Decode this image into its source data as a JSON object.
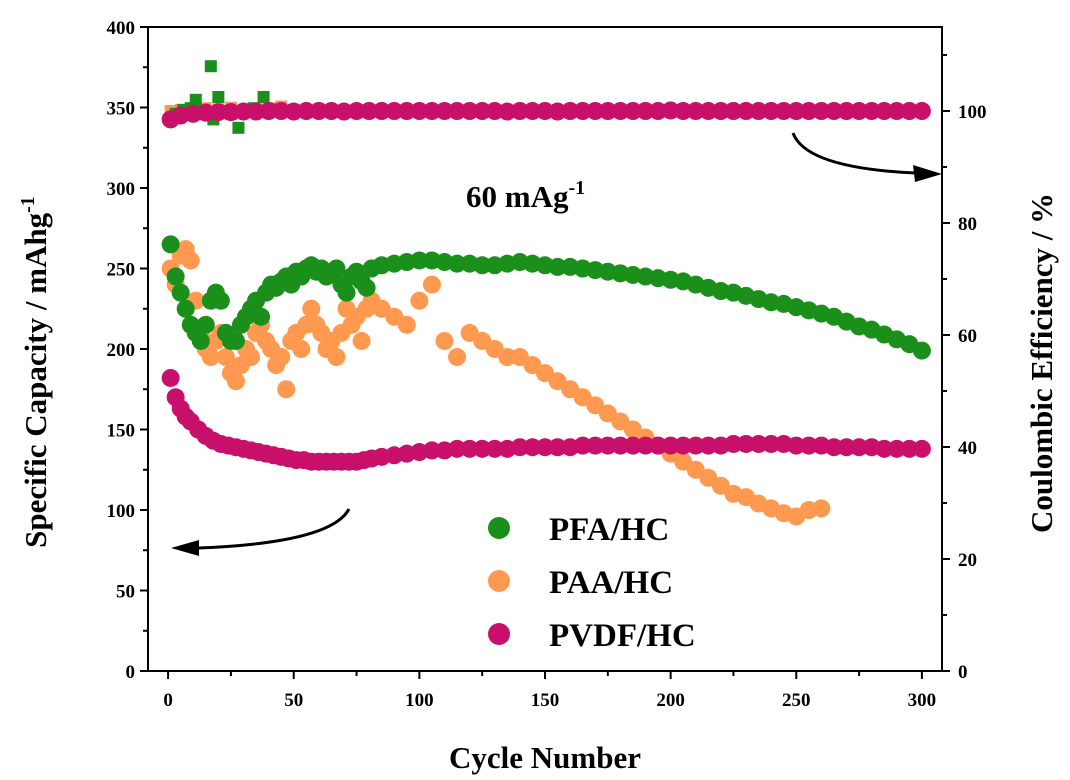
{
  "chart_data": {
    "type": "scatter",
    "annotation": {
      "main": "60 mAg",
      "superscript": "-1"
    },
    "x_axis": {
      "label": "Cycle Number",
      "range": [
        -8,
        308
      ],
      "ticks": [
        "0",
        "50",
        "100",
        "150",
        "200",
        "250",
        "300"
      ],
      "tick_values": [
        0,
        50,
        100,
        150,
        200,
        250,
        300
      ]
    },
    "y_left": {
      "label": "Specific Capacity / mAhg",
      "label_superscript": "-1",
      "range": [
        0,
        400
      ],
      "ticks": [
        "0",
        "50",
        "100",
        "150",
        "200",
        "250",
        "300",
        "350",
        "400"
      ],
      "tick_values": [
        0,
        50,
        100,
        150,
        200,
        250,
        300,
        350,
        400
      ]
    },
    "y_right": {
      "label": "Coulombic Efficiency / %",
      "range": [
        0,
        115
      ],
      "ticks": [
        "0",
        "20",
        "40",
        "60",
        "80",
        "100"
      ],
      "tick_values": [
        0,
        20,
        40,
        60,
        80,
        100
      ]
    },
    "legend": {
      "position": "bottom-center",
      "entries": [
        {
          "name": "PFA/HC",
          "color": "#1a8f1a"
        },
        {
          "name": "PAA/HC",
          "color": "#ff9950"
        },
        {
          "name": "PVDF/HC",
          "color": "#c8106a"
        }
      ]
    },
    "series": [
      {
        "name": "PFA/HC",
        "color": "#1a8f1a",
        "axis": "left",
        "marker": "circle",
        "x": [
          1,
          3,
          5,
          7,
          9,
          11,
          13,
          15,
          17,
          19,
          21,
          23,
          25,
          27,
          29,
          31,
          33,
          35,
          37,
          39,
          41,
          43,
          45,
          47,
          49,
          51,
          53,
          55,
          57,
          59,
          61,
          63,
          65,
          67,
          69,
          71,
          73,
          75,
          77,
          79,
          81,
          85,
          90,
          95,
          100,
          105,
          110,
          115,
          120,
          125,
          130,
          135,
          140,
          145,
          150,
          155,
          160,
          165,
          170,
          175,
          180,
          185,
          190,
          195,
          200,
          205,
          210,
          215,
          220,
          225,
          230,
          235,
          240,
          245,
          250,
          255,
          260,
          265,
          270,
          275,
          280,
          285,
          290,
          295,
          300
        ],
        "y": [
          265,
          245,
          235,
          225,
          215,
          210,
          205,
          215,
          230,
          235,
          230,
          210,
          205,
          205,
          215,
          220,
          225,
          230,
          220,
          235,
          240,
          238,
          242,
          245,
          240,
          248,
          245,
          250,
          252,
          248,
          250,
          245,
          248,
          250,
          240,
          235,
          245,
          248,
          242,
          238,
          250,
          252,
          253,
          254,
          255,
          255,
          254,
          253,
          253,
          252,
          252,
          253,
          254,
          253,
          252,
          251,
          251,
          250,
          249,
          248,
          247,
          246,
          245,
          244,
          243,
          242,
          240,
          238,
          236,
          235,
          233,
          231,
          229,
          228,
          226,
          224,
          222,
          220,
          217,
          214,
          212,
          209,
          206,
          203,
          199
        ]
      },
      {
        "name": "PAA/HC",
        "color": "#ff9950",
        "axis": "left",
        "marker": "circle",
        "x": [
          1,
          3,
          5,
          7,
          9,
          11,
          13,
          15,
          17,
          19,
          21,
          23,
          25,
          27,
          29,
          31,
          33,
          35,
          37,
          39,
          41,
          43,
          45,
          47,
          49,
          51,
          53,
          55,
          57,
          59,
          61,
          63,
          65,
          67,
          69,
          71,
          73,
          75,
          77,
          79,
          81,
          85,
          90,
          95,
          100,
          105,
          110,
          115,
          120,
          125,
          130,
          135,
          140,
          145,
          150,
          155,
          160,
          165,
          170,
          175,
          180,
          185,
          190,
          195,
          200,
          205,
          210,
          215,
          220,
          225,
          230,
          235,
          240,
          245,
          250,
          255,
          260
        ],
        "y": [
          250,
          240,
          258,
          262,
          255,
          230,
          210,
          200,
          195,
          205,
          210,
          195,
          185,
          180,
          190,
          200,
          195,
          210,
          215,
          205,
          200,
          190,
          195,
          175,
          205,
          210,
          200,
          215,
          225,
          215,
          210,
          200,
          205,
          195,
          210,
          225,
          215,
          220,
          205,
          225,
          230,
          225,
          220,
          215,
          230,
          240,
          205,
          195,
          210,
          205,
          200,
          195,
          195,
          190,
          185,
          180,
          175,
          170,
          165,
          160,
          155,
          150,
          145,
          140,
          135,
          130,
          125,
          120,
          115,
          110,
          108,
          104,
          101,
          98,
          96,
          100,
          101
        ]
      },
      {
        "name": "PVDF/HC",
        "color": "#c8106a",
        "axis": "left",
        "marker": "circle",
        "x": [
          1,
          3,
          5,
          7,
          9,
          12,
          15,
          18,
          21,
          24,
          27,
          30,
          33,
          36,
          39,
          42,
          45,
          48,
          51,
          54,
          57,
          60,
          63,
          66,
          69,
          72,
          75,
          78,
          81,
          85,
          90,
          95,
          100,
          105,
          110,
          115,
          120,
          125,
          130,
          135,
          140,
          145,
          150,
          155,
          160,
          165,
          170,
          175,
          180,
          185,
          190,
          195,
          200,
          205,
          210,
          215,
          220,
          225,
          230,
          235,
          240,
          245,
          250,
          255,
          260,
          265,
          270,
          275,
          280,
          285,
          290,
          295,
          300
        ],
        "y": [
          182,
          170,
          163,
          158,
          155,
          150,
          146,
          143,
          141,
          140,
          139,
          138,
          137,
          136,
          135,
          134,
          133,
          132,
          131,
          131,
          130,
          130,
          130,
          130,
          130,
          130,
          130,
          131,
          132,
          133,
          134,
          135,
          136,
          137,
          137,
          138,
          138,
          138,
          138,
          138,
          139,
          139,
          139,
          139,
          139,
          140,
          140,
          140,
          140,
          140,
          140,
          140,
          140,
          140,
          140,
          140,
          140,
          141,
          141,
          141,
          141,
          141,
          140,
          140,
          140,
          139,
          139,
          139,
          139,
          138,
          138,
          138,
          138
        ]
      },
      {
        "name": "PFA/HC CE",
        "color": "#1a8f1a",
        "axis": "right",
        "marker": "square",
        "x": [
          1,
          3,
          6,
          9,
          11,
          14,
          17,
          18,
          20,
          22,
          25,
          28,
          30,
          34,
          38,
          40,
          44,
          48,
          55,
          65,
          80,
          100
        ],
        "y": [
          98.5,
          99.5,
          100.2,
          100.5,
          102,
          100,
          108,
          98.5,
          102.5,
          100,
          99.5,
          97,
          99.8,
          100.5,
          102.5,
          99.8,
          100.3,
          100,
          100,
          100,
          100,
          100
        ]
      },
      {
        "name": "PAA/HC CE",
        "color": "#ff9950",
        "axis": "right",
        "marker": "square",
        "x": [
          1,
          5,
          10,
          15,
          20,
          25,
          30,
          35,
          40,
          45,
          50,
          60,
          70,
          80,
          90,
          100,
          110,
          120,
          130,
          140,
          150,
          160,
          170,
          180,
          190,
          200,
          210,
          220,
          230,
          240,
          250,
          260
        ],
        "y": [
          100,
          100.2,
          100,
          100.5,
          100.3,
          100.6,
          100,
          100.4,
          100.5,
          100.8,
          100.2,
          100.3,
          100.1,
          100.2,
          100.1,
          100,
          100,
          100,
          100,
          100,
          100,
          100,
          100,
          100,
          100,
          100,
          100,
          100,
          100,
          100,
          100,
          100
        ]
      },
      {
        "name": "PVDF/HC CE",
        "color": "#c8106a",
        "axis": "right",
        "marker": "circle",
        "x": [
          1,
          5,
          10,
          15,
          20,
          25,
          30,
          35,
          40,
          45,
          50,
          55,
          60,
          65,
          70,
          75,
          80,
          85,
          90,
          95,
          100,
          105,
          110,
          115,
          120,
          125,
          130,
          135,
          140,
          145,
          150,
          155,
          160,
          165,
          170,
          175,
          180,
          185,
          190,
          195,
          200,
          205,
          210,
          215,
          220,
          225,
          230,
          235,
          240,
          245,
          250,
          255,
          260,
          265,
          270,
          275,
          280,
          285,
          290,
          295,
          300
        ],
        "y": [
          98.5,
          99.2,
          99.5,
          99.7,
          99.8,
          99.8,
          99.9,
          99.9,
          100,
          100,
          99.9,
          100,
          100,
          100,
          99.9,
          100,
          100,
          100,
          100,
          100,
          100,
          100,
          100,
          100,
          100,
          100,
          100,
          99.9,
          100,
          100,
          100,
          99.9,
          100,
          100,
          100,
          100,
          100,
          100,
          100,
          100,
          100.1,
          100,
          100,
          100,
          100,
          100,
          100,
          100,
          100,
          100,
          100,
          100,
          100,
          100,
          100,
          100,
          100,
          100,
          100,
          100,
          100
        ]
      }
    ]
  }
}
